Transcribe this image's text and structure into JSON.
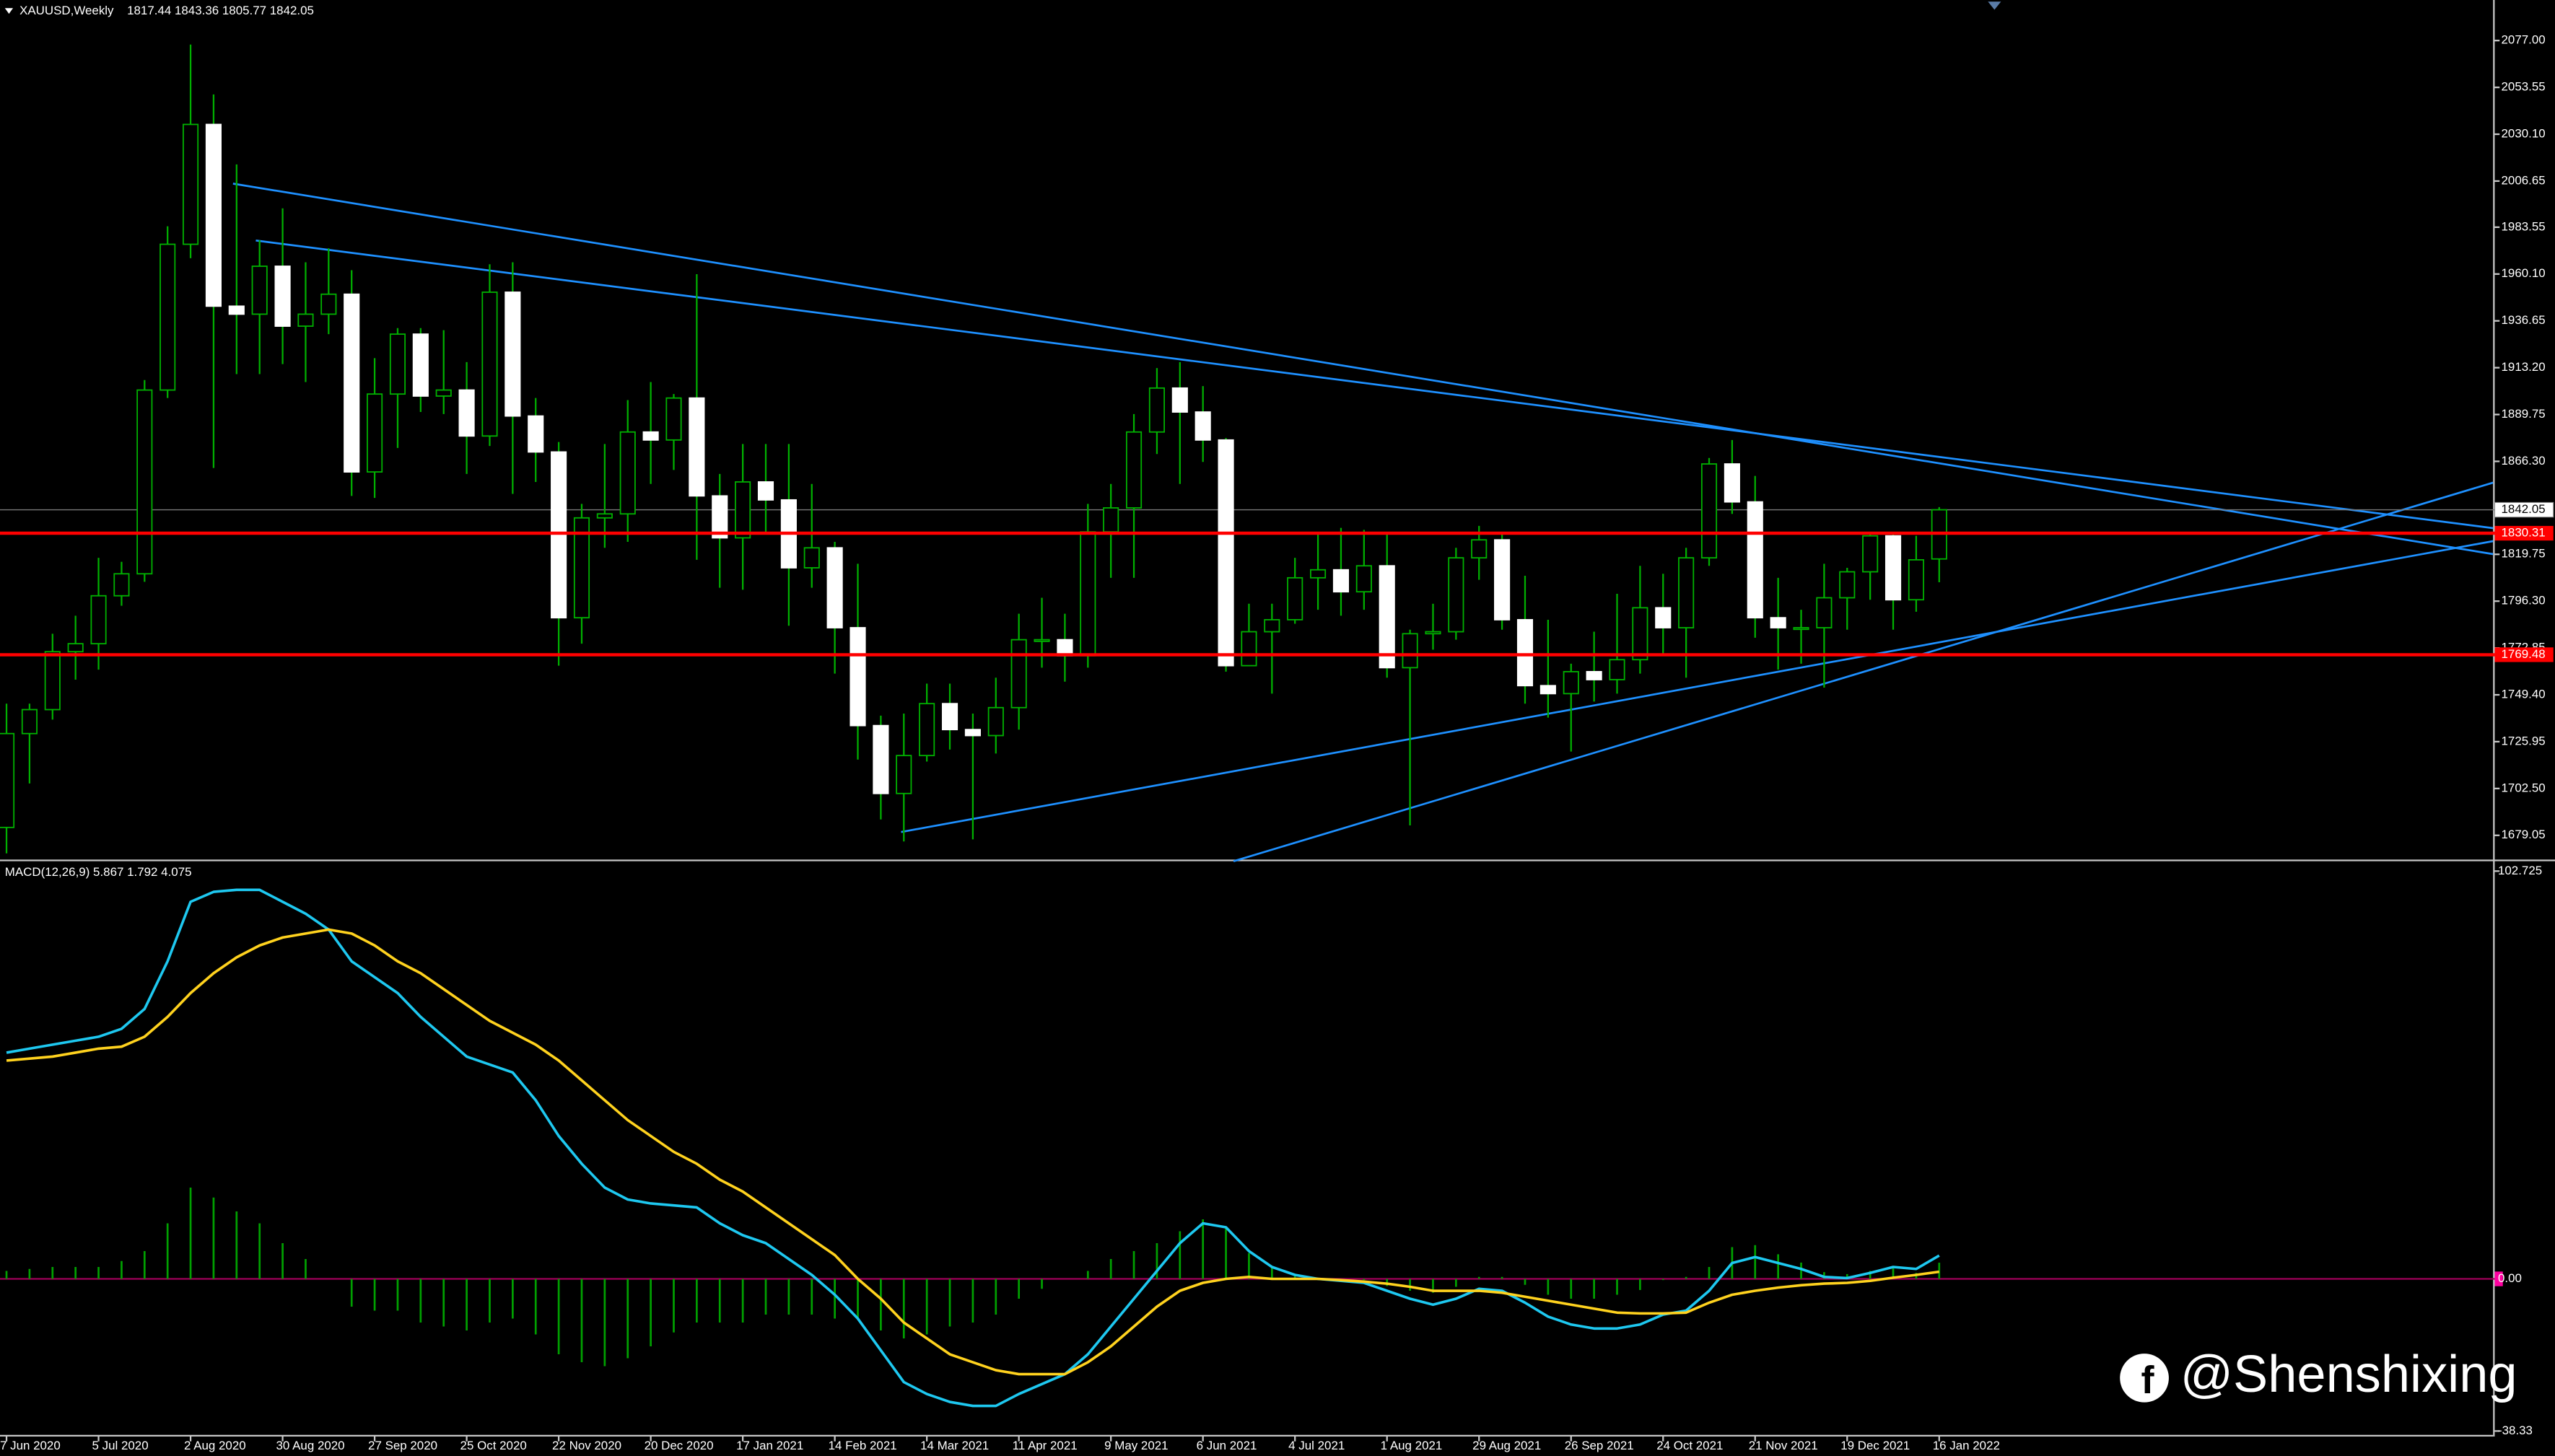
{
  "chart_data": [
    {
      "type": "candlestick",
      "title": "XAUUSD,Weekly",
      "ohlc_label": "1817.44 1843.36 1805.77 1842.05",
      "categories": [
        "7 Jun 2020",
        null,
        null,
        null,
        "5 Jul 2020",
        null,
        null,
        null,
        "2 Aug 2020",
        null,
        null,
        null,
        "30 Aug 2020",
        null,
        null,
        null,
        "27 Sep 2020",
        null,
        null,
        null,
        "25 Oct 2020",
        null,
        null,
        null,
        "22 Nov 2020",
        null,
        null,
        null,
        "20 Dec 2020",
        null,
        null,
        null,
        "17 Jan 2021",
        null,
        null,
        null,
        "14 Feb 2021",
        null,
        null,
        null,
        "14 Mar 2021",
        null,
        null,
        null,
        "11 Apr 2021",
        null,
        null,
        null,
        "9 May 2021",
        null,
        null,
        null,
        "6 Jun 2021",
        null,
        null,
        null,
        "4 Jul 2021",
        null,
        null,
        null,
        "1 Aug 2021",
        null,
        null,
        null,
        "29 Aug 2021",
        null,
        null,
        null,
        "26 Sep 2021",
        null,
        null,
        null,
        "24 Oct 2021",
        null,
        null,
        null,
        "21 Nov 2021",
        null,
        null,
        null,
        "19 Dec 2021",
        null,
        null,
        null,
        "16 Jan 2022"
      ],
      "open": [
        1683,
        1730,
        1742,
        1771,
        1775,
        1799,
        1810,
        1902,
        1975,
        2035,
        1944,
        1940,
        1964,
        1934,
        1940,
        1950,
        1861,
        1900,
        1930,
        1899,
        1902,
        1879,
        1951,
        1889,
        1871,
        1788,
        1838,
        1840,
        1881,
        1877,
        1898,
        1849,
        1828,
        1856,
        1847,
        1813,
        1823,
        1783,
        1734,
        1700,
        1719,
        1745,
        1732,
        1729,
        1743,
        1777,
        1777,
        1769,
        1831,
        1843,
        1881,
        1903,
        1891,
        1877,
        1764,
        1781,
        1787,
        1808,
        1812,
        1801,
        1814,
        1763,
        1780,
        1781,
        1818,
        1827,
        1787,
        1754,
        1750,
        1761,
        1757,
        1767,
        1793,
        1783,
        1818,
        1865,
        1846,
        1788,
        1783,
        1783,
        1798,
        1811,
        1829,
        1797,
        1817.44
      ],
      "high": [
        1745,
        1745,
        1780,
        1789,
        1818,
        1816,
        1907,
        1984,
        2075,
        2050,
        2015,
        1977,
        1993,
        1966,
        1973,
        1962,
        1918,
        1933,
        1933,
        1932,
        1916,
        1965,
        1966,
        1898,
        1876,
        1845,
        1875,
        1897,
        1906,
        1900,
        1960,
        1860,
        1875,
        1875,
        1875,
        1855,
        1826,
        1815,
        1739,
        1740,
        1755,
        1755,
        1740,
        1758,
        1790,
        1798,
        1790,
        1845,
        1855,
        1890,
        1913,
        1916,
        1904,
        1878,
        1795,
        1795,
        1818,
        1830,
        1833,
        1832,
        1831,
        1782,
        1795,
        1823,
        1834,
        1830,
        1809,
        1787,
        1765,
        1781,
        1800,
        1814,
        1810,
        1823,
        1868,
        1877,
        1859,
        1808,
        1792,
        1815,
        1813,
        1831,
        1831,
        1829,
        1843.36
      ],
      "low": [
        1670,
        1705,
        1737,
        1757,
        1762,
        1794,
        1806,
        1898,
        1968,
        1863,
        1910,
        1910,
        1915,
        1906,
        1930,
        1849,
        1848,
        1873,
        1891,
        1890,
        1860,
        1874,
        1850,
        1856,
        1764,
        1775,
        1823,
        1826,
        1855,
        1862,
        1817,
        1803,
        1802,
        1830,
        1784,
        1803,
        1760,
        1717,
        1687,
        1676,
        1716,
        1722,
        1677,
        1720,
        1732,
        1763,
        1756,
        1763,
        1808,
        1808,
        1870,
        1855,
        1866,
        1761,
        1764,
        1750,
        1785,
        1792,
        1789,
        1792,
        1758,
        1684,
        1772,
        1777,
        1807,
        1782,
        1745,
        1738,
        1721,
        1746,
        1750,
        1760,
        1770,
        1758,
        1814,
        1840,
        1778,
        1762,
        1765,
        1753,
        1782,
        1797,
        1782,
        1791,
        1805.77
      ],
      "close": [
        1730,
        1742,
        1771,
        1775,
        1799,
        1810,
        1902,
        1975,
        2035,
        1944,
        1940,
        1964,
        1934,
        1940,
        1950,
        1861,
        1900,
        1930,
        1899,
        1902,
        1879,
        1951,
        1889,
        1871,
        1788,
        1838,
        1840,
        1881,
        1877,
        1898,
        1849,
        1828,
        1856,
        1847,
        1813,
        1823,
        1783,
        1734,
        1700,
        1719,
        1745,
        1732,
        1729,
        1743,
        1777,
        1777,
        1769,
        1831,
        1843,
        1881,
        1903,
        1891,
        1877,
        1764,
        1781,
        1787,
        1808,
        1812,
        1801,
        1814,
        1763,
        1780,
        1781,
        1818,
        1827,
        1787,
        1754,
        1750,
        1761,
        1757,
        1767,
        1793,
        1783,
        1818,
        1865,
        1846,
        1788,
        1783,
        1783,
        1798,
        1811,
        1829,
        1797,
        1817,
        1842.05
      ],
      "up_color": "#000000",
      "down_color": "#ffffff",
      "wick_color": "#00b000",
      "ylim": [
        1667.7,
        2097.3
      ],
      "yticks": [
        {
          "value": 2077,
          "label": "2077.00"
        },
        {
          "value": 2053.55,
          "label": "2053.55"
        },
        {
          "value": 2030.1,
          "label": "2030.10"
        },
        {
          "value": 2006.65,
          "label": "2006.65"
        },
        {
          "value": 1983.55,
          "label": "1983.55"
        },
        {
          "value": 1960.1,
          "label": "1960.10"
        },
        {
          "value": 1936.65,
          "label": "1936.65"
        },
        {
          "value": 1913.2,
          "label": "1913.20"
        },
        {
          "value": 1889.75,
          "label": "1889.75"
        },
        {
          "value": 1866.3,
          "label": "1866.30"
        },
        {
          "value": 1819.75,
          "label": "1819.75"
        },
        {
          "value": 1796.3,
          "label": "1796.30"
        },
        {
          "value": 1772.85,
          "label": "1772.85"
        },
        {
          "value": 1749.4,
          "label": "1749.40"
        },
        {
          "value": 1725.95,
          "label": "1725.95"
        },
        {
          "value": 1702.5,
          "label": "1702.50"
        },
        {
          "value": 1679.05,
          "label": "1679.05"
        }
      ],
      "levels": [
        {
          "value": 1830.31,
          "label": "1830.31"
        },
        {
          "value": 1769.48,
          "label": "1769.48"
        }
      ],
      "level_color": "#ff0000",
      "current_price": {
        "value": 1842.05,
        "label": "1842.05"
      },
      "watermark": "@Shenshixing"
    },
    {
      "type": "macd",
      "indicator_label": "MACD(12,26,9) 5.867 1.792 4.075",
      "series": [
        {
          "color": "#1ec8f0",
          "values": [
            57,
            58,
            59,
            60,
            61,
            63,
            68,
            80,
            95,
            97.5,
            98,
            98,
            95,
            92,
            88,
            80,
            76,
            72,
            66,
            61,
            56,
            54,
            52,
            45,
            36,
            29,
            23,
            20,
            19,
            18.5,
            18,
            14,
            11,
            9,
            5,
            1,
            -4,
            -10,
            -18,
            -26,
            -29,
            -31,
            -32,
            -32,
            -29,
            -26.5,
            -24,
            -19,
            -12,
            -5,
            2,
            9,
            14,
            13,
            7,
            3,
            1,
            0,
            -0.5,
            -1,
            -3,
            -5,
            -6.5,
            -5,
            -2.5,
            -3,
            -6,
            -9.5,
            -11.5,
            -12.5,
            -12.5,
            -11.5,
            -9,
            -8,
            -3,
            4,
            5.5,
            4,
            2.5,
            0.5,
            0.2,
            1.5,
            3,
            2.5,
            5.867
          ]
        },
        {
          "color": "#ffd21e",
          "values": [
            55,
            55.5,
            56,
            57,
            58,
            58.5,
            61,
            66,
            72,
            77,
            81,
            84,
            86,
            87,
            88,
            87,
            84,
            80,
            77,
            73,
            69,
            65,
            62,
            59,
            55,
            50,
            45,
            40,
            36,
            32,
            29,
            25,
            22,
            18,
            14,
            10,
            6,
            0,
            -5,
            -11,
            -15,
            -19,
            -21,
            -23,
            -24,
            -24,
            -24,
            -21,
            -17,
            -12,
            -7,
            -3,
            -1,
            0,
            0.5,
            0,
            0,
            0,
            -0.3,
            -0.7,
            -1.2,
            -2,
            -3,
            -3,
            -3,
            -3.5,
            -4.5,
            -5.5,
            -6.5,
            -7.5,
            -8.5,
            -8.7,
            -8.7,
            -8.5,
            -6,
            -4,
            -3,
            -2.2,
            -1.6,
            -1.2,
            -1,
            -0.5,
            0.3,
            1,
            1.792
          ]
        }
      ],
      "histogram": {
        "color": "#00a000",
        "values": [
          2,
          2.5,
          3,
          3,
          3,
          4.5,
          7,
          14,
          23,
          20.5,
          17,
          14,
          9,
          5,
          0,
          -7,
          -8,
          -8,
          -11,
          -12,
          -13,
          -11,
          -10,
          -14,
          -19,
          -21,
          -22,
          -20,
          -17,
          -13.5,
          -11,
          -11,
          -11,
          -9,
          -9,
          -9,
          -10,
          -10,
          -13,
          -15,
          -14,
          -12,
          -11,
          -9,
          -5,
          -2.5,
          0,
          2,
          5,
          7,
          9,
          12,
          15,
          13,
          6.5,
          3,
          1,
          0,
          -0.2,
          -0.3,
          -1.8,
          -3,
          -3.5,
          -2,
          0.5,
          0.5,
          -1.5,
          -4,
          -5,
          -5,
          -4,
          -2.8,
          -0.3,
          0.5,
          3,
          8,
          8.5,
          6.2,
          4.1,
          1.7,
          1.2,
          2,
          2.7,
          1.5,
          4.075
        ]
      },
      "ylim": [
        -39.3,
        104.8
      ],
      "yticks": [
        {
          "value": 102.725,
          "label": "102.725"
        },
        {
          "value": 0,
          "label": "0.00"
        },
        {
          "value": -38.33,
          "label": "-38.33"
        }
      ],
      "zero_line": true,
      "zero_color": "#a0005a"
    }
  ]
}
